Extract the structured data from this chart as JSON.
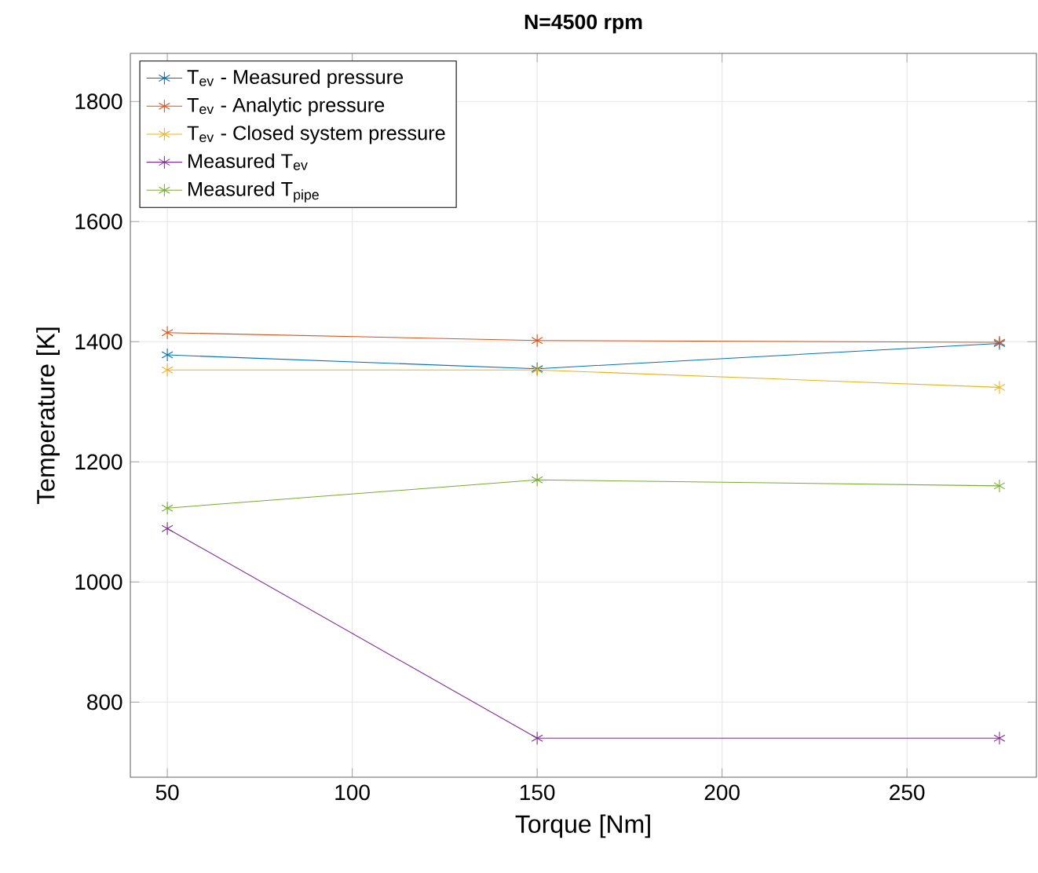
{
  "chart_data": {
    "type": "line",
    "title": "N=4500 rpm",
    "xlabel": "Torque [Nm]",
    "ylabel": "Temperature [K]",
    "x": [
      50,
      150,
      275
    ],
    "series": [
      {
        "name": "T$_{ev}$ - Measured pressure",
        "color": "#0072bd",
        "values": [
          1378,
          1355,
          1397
        ]
      },
      {
        "name": "T$_{ev}$ - Analytic pressure",
        "color": "#d95319",
        "values": [
          1415,
          1402,
          1399
        ]
      },
      {
        "name": "T$_{ev}$ - Closed system pressure",
        "color": "#edb120",
        "values": [
          1353,
          1353,
          1324
        ]
      },
      {
        "name": "Measured T$_{ev}$",
        "color": "#7e2f8e",
        "values": [
          1089,
          740,
          740
        ]
      },
      {
        "name": "Measured T$_{pipe}$",
        "color": "#77ac30",
        "values": [
          1123,
          1170,
          1160
        ]
      }
    ],
    "xlim": [
      40,
      285
    ],
    "ylim": [
      675,
      1880
    ],
    "xticks": [
      50,
      100,
      150,
      200,
      250
    ],
    "yticks": [
      800,
      1000,
      1200,
      1400,
      1600,
      1800
    ],
    "grid": true,
    "legend": "top left",
    "marker": "cross",
    "line_style": "solid"
  }
}
